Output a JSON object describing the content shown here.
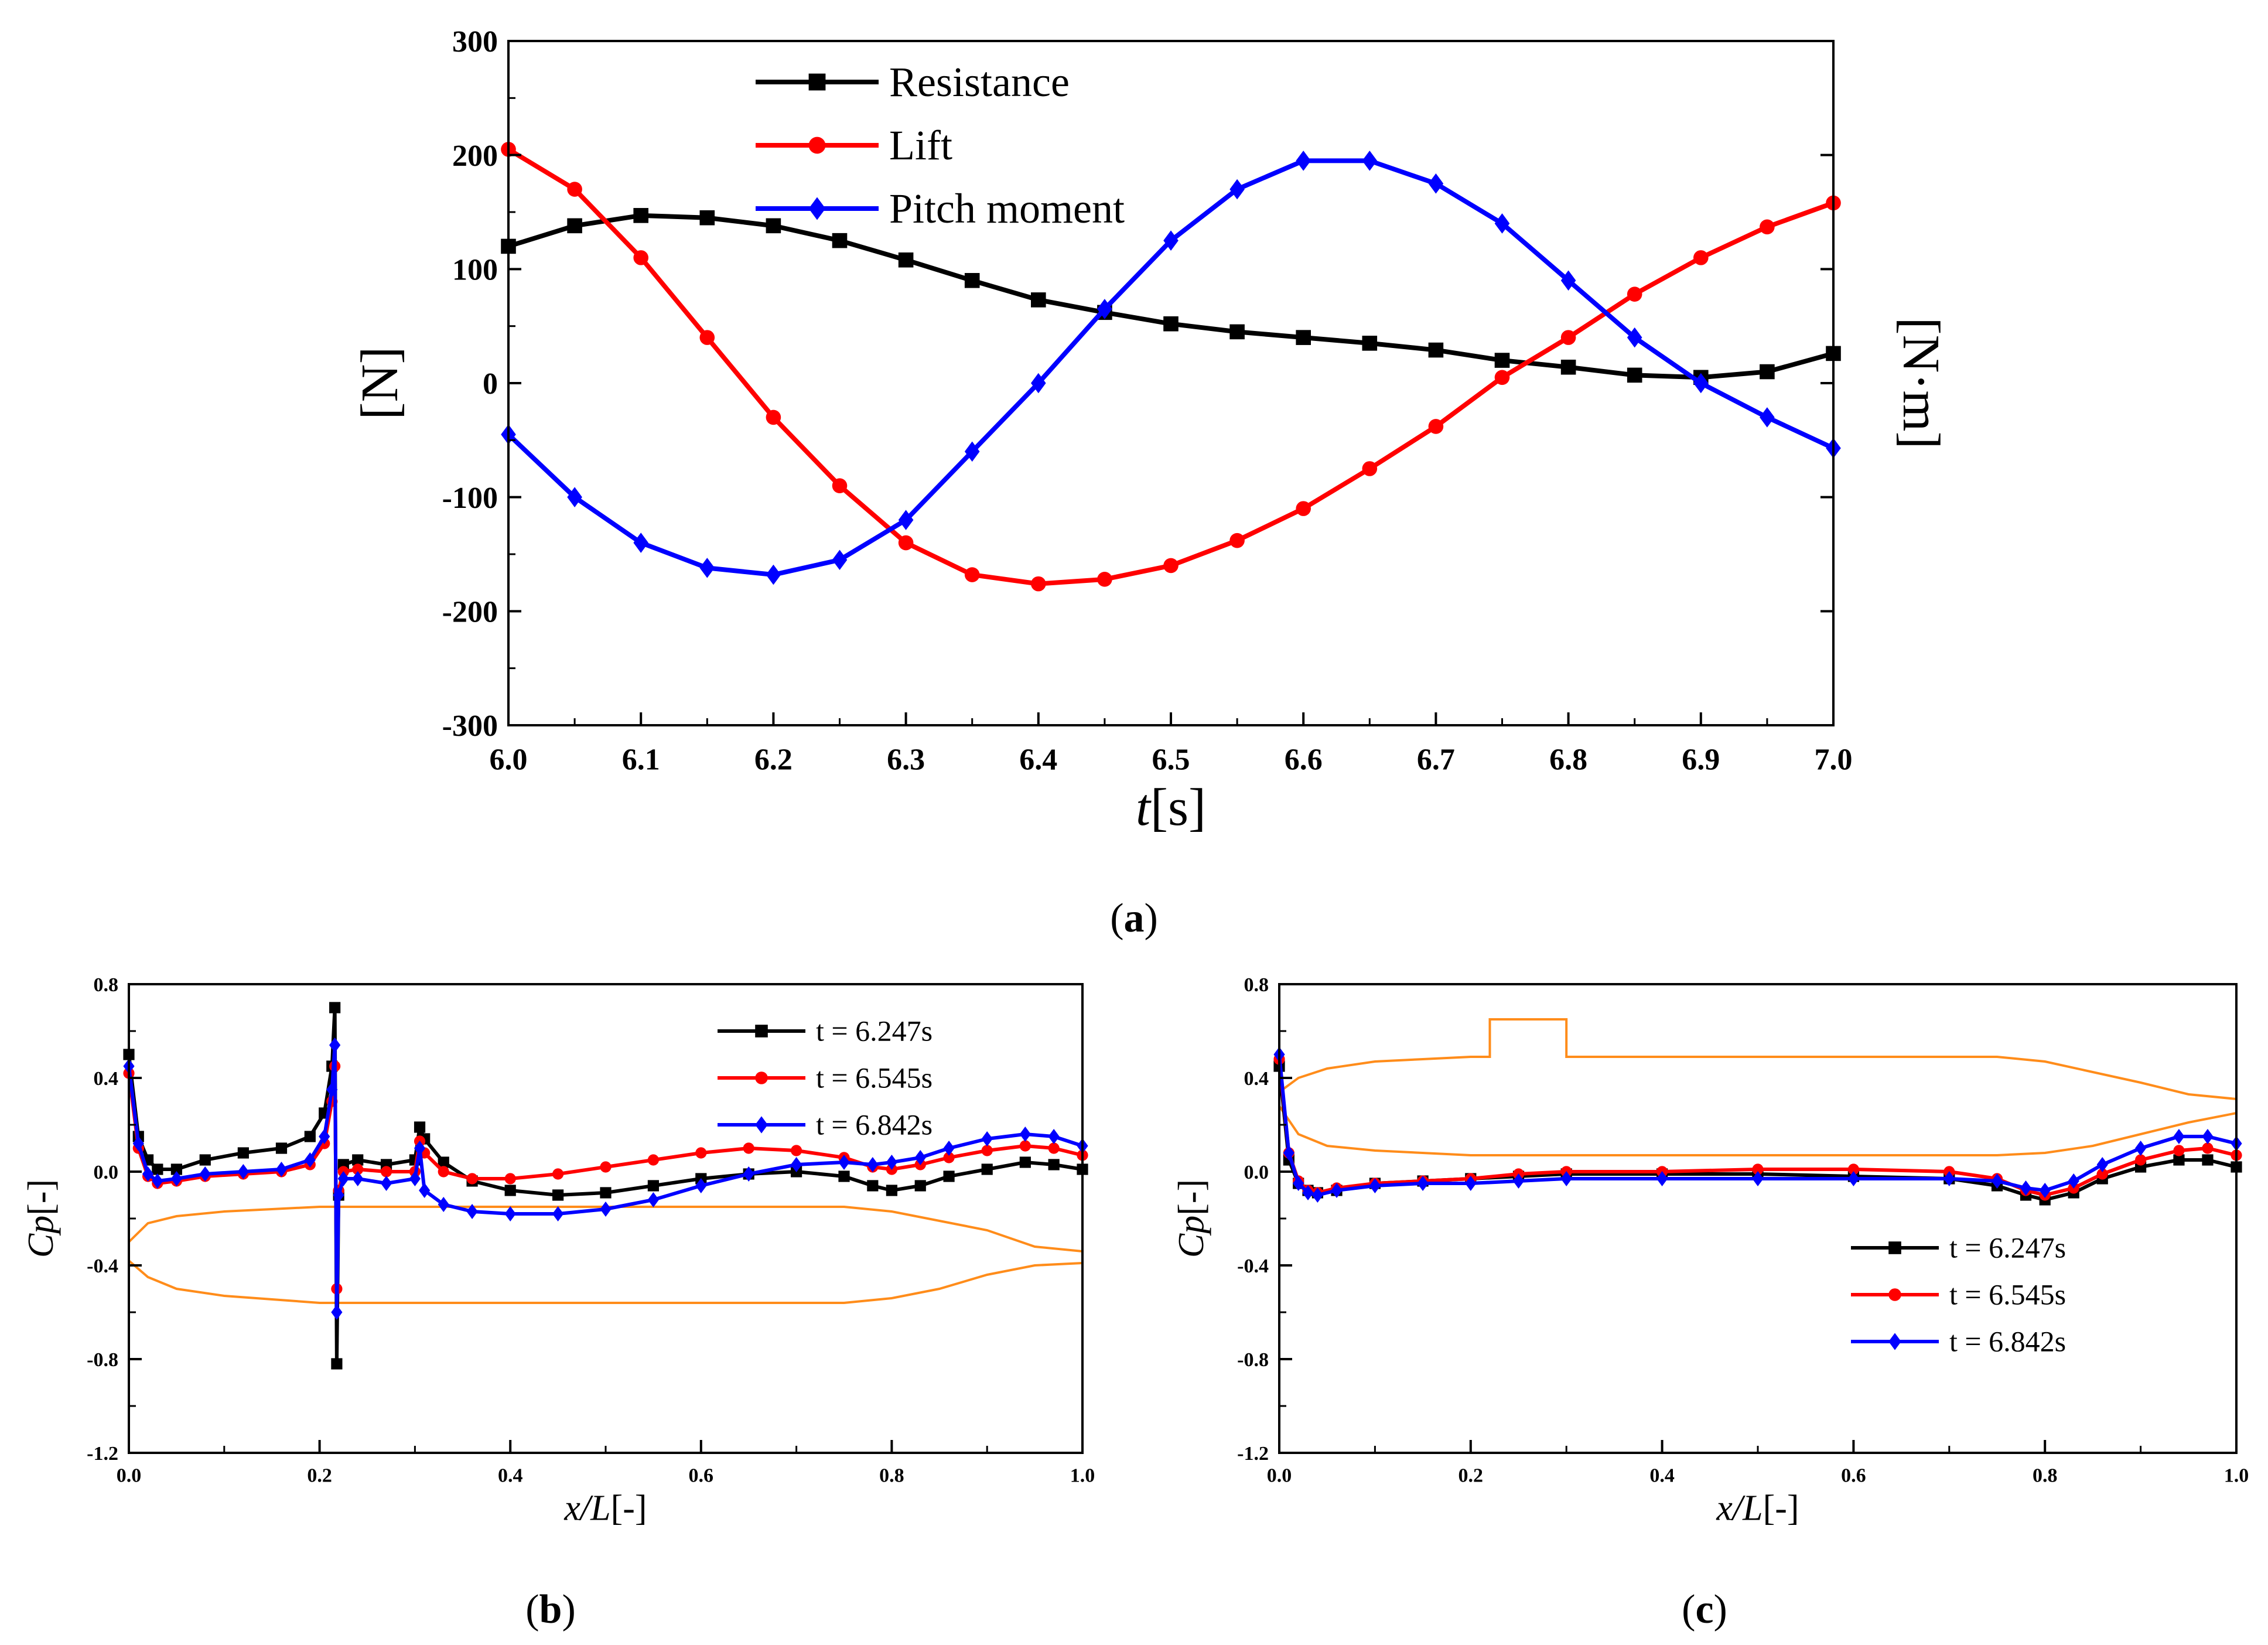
{
  "figure": {
    "panel_a_label": "a",
    "panel_b_label": "b",
    "panel_c_label": "c"
  },
  "colors": {
    "resistance": "#000000",
    "lift": "#ff0000",
    "pitch": "#0000ff",
    "hull": "#ff8c1a",
    "axis": "#000000"
  },
  "chart_data": [
    {
      "id": "a",
      "type": "line",
      "title": "",
      "xlabel_italic": "t",
      "xlabel_rest": "[s]",
      "ylabel_left": "[N]",
      "ylabel_right": "[N·m]",
      "xlim": [
        6.0,
        7.0
      ],
      "ylim": [
        -300,
        300
      ],
      "xticks": [
        6.0,
        6.1,
        6.2,
        6.3,
        6.4,
        6.5,
        6.6,
        6.7,
        6.8,
        6.9,
        7.0
      ],
      "xtick_labels": [
        "6.0",
        "6.1",
        "6.2",
        "6.3",
        "6.4",
        "6.5",
        "6.6",
        "6.7",
        "6.8",
        "6.9",
        "7.0"
      ],
      "yticks": [
        -300,
        -200,
        -100,
        0,
        100,
        200,
        300
      ],
      "ytick_labels": [
        "-300",
        "-200",
        "-100",
        "0",
        "100",
        "200",
        "300"
      ],
      "legend_position": "top-left",
      "series": [
        {
          "name": "Resistance",
          "color": "#000000",
          "marker": "square",
          "x": [
            6.0,
            6.05,
            6.1,
            6.15,
            6.2,
            6.25,
            6.3,
            6.35,
            6.4,
            6.45,
            6.5,
            6.55,
            6.6,
            6.65,
            6.7,
            6.75,
            6.8,
            6.85,
            6.9,
            6.95,
            7.0
          ],
          "y": [
            120,
            138,
            147,
            145,
            138,
            125,
            108,
            90,
            73,
            62,
            52,
            45,
            40,
            35,
            29,
            20,
            14,
            7,
            5,
            10,
            26
          ]
        },
        {
          "name": "Lift",
          "color": "#ff0000",
          "marker": "circle",
          "x": [
            6.0,
            6.05,
            6.1,
            6.15,
            6.2,
            6.25,
            6.3,
            6.35,
            6.4,
            6.45,
            6.5,
            6.55,
            6.6,
            6.65,
            6.7,
            6.75,
            6.8,
            6.85,
            6.9,
            6.95,
            7.0
          ],
          "y": [
            205,
            170,
            110,
            40,
            -30,
            -90,
            -140,
            -168,
            -176,
            -172,
            -160,
            -138,
            -110,
            -75,
            -38,
            5,
            40,
            78,
            110,
            137,
            158
          ]
        },
        {
          "name": "Pitch moment",
          "color": "#0000ff",
          "marker": "diamond",
          "x": [
            6.0,
            6.05,
            6.1,
            6.15,
            6.2,
            6.25,
            6.3,
            6.35,
            6.4,
            6.45,
            6.5,
            6.55,
            6.6,
            6.65,
            6.7,
            6.75,
            6.8,
            6.85,
            6.9,
            6.95,
            7.0
          ],
          "y": [
            -45,
            -100,
            -140,
            -162,
            -168,
            -155,
            -120,
            -60,
            0,
            65,
            125,
            170,
            195,
            195,
            175,
            140,
            90,
            40,
            0,
            -30,
            -57
          ]
        }
      ]
    },
    {
      "id": "b",
      "type": "line",
      "title": "",
      "xlabel_italic": "x/L",
      "xlabel_rest": "[-]",
      "ylabel_italic": "Cp",
      "ylabel_rest": "[-]",
      "xlim": [
        0.0,
        1.0
      ],
      "ylim": [
        -1.2,
        0.8
      ],
      "xticks": [
        0.0,
        0.2,
        0.4,
        0.6,
        0.8,
        1.0
      ],
      "xtick_labels": [
        "0.0",
        "0.2",
        "0.4",
        "0.6",
        "0.8",
        "1.0"
      ],
      "yticks": [
        -1.2,
        -0.8,
        -0.4,
        0.0,
        0.4,
        0.8
      ],
      "ytick_labels": [
        "-1.2",
        "-0.8",
        "-0.4",
        "0.0",
        "0.4",
        "0.8"
      ],
      "legend_position": "top-right",
      "series": [
        {
          "name": "t = 6.247s",
          "color": "#000000",
          "marker": "square",
          "x": [
            0.0,
            0.01,
            0.02,
            0.03,
            0.05,
            0.08,
            0.12,
            0.16,
            0.19,
            0.205,
            0.213,
            0.216,
            0.218,
            0.22,
            0.225,
            0.24,
            0.27,
            0.3,
            0.305,
            0.31,
            0.33,
            0.36,
            0.4,
            0.45,
            0.5,
            0.55,
            0.6,
            0.65,
            0.7,
            0.75,
            0.78,
            0.8,
            0.83,
            0.86,
            0.9,
            0.94,
            0.97,
            1.0
          ],
          "y": [
            0.5,
            0.15,
            0.05,
            0.01,
            0.01,
            0.05,
            0.08,
            0.1,
            0.15,
            0.25,
            0.45,
            0.7,
            -0.82,
            -0.1,
            0.03,
            0.05,
            0.03,
            0.05,
            0.19,
            0.14,
            0.04,
            -0.04,
            -0.08,
            -0.1,
            -0.09,
            -0.06,
            -0.03,
            -0.01,
            0.0,
            -0.02,
            -0.06,
            -0.08,
            -0.06,
            -0.02,
            0.01,
            0.04,
            0.03,
            0.01
          ]
        },
        {
          "name": "t = 6.545s",
          "color": "#ff0000",
          "marker": "circle",
          "x": [
            0.0,
            0.01,
            0.02,
            0.03,
            0.05,
            0.08,
            0.12,
            0.16,
            0.19,
            0.205,
            0.213,
            0.216,
            0.218,
            0.22,
            0.225,
            0.24,
            0.27,
            0.3,
            0.305,
            0.31,
            0.33,
            0.36,
            0.4,
            0.45,
            0.5,
            0.55,
            0.6,
            0.65,
            0.7,
            0.75,
            0.78,
            0.8,
            0.83,
            0.86,
            0.9,
            0.94,
            0.97,
            1.0
          ],
          "y": [
            0.42,
            0.1,
            -0.02,
            -0.05,
            -0.04,
            -0.02,
            -0.01,
            0.0,
            0.03,
            0.12,
            0.3,
            0.45,
            -0.5,
            -0.08,
            0.0,
            0.01,
            0.0,
            0.0,
            0.13,
            0.08,
            0.0,
            -0.03,
            -0.03,
            -0.01,
            0.02,
            0.05,
            0.08,
            0.1,
            0.09,
            0.06,
            0.02,
            0.01,
            0.03,
            0.06,
            0.09,
            0.11,
            0.1,
            0.07
          ]
        },
        {
          "name": "t = 6.842s",
          "color": "#0000ff",
          "marker": "diamond",
          "x": [
            0.0,
            0.01,
            0.02,
            0.03,
            0.05,
            0.08,
            0.12,
            0.16,
            0.19,
            0.205,
            0.213,
            0.216,
            0.218,
            0.22,
            0.225,
            0.24,
            0.27,
            0.3,
            0.305,
            0.31,
            0.33,
            0.36,
            0.4,
            0.45,
            0.5,
            0.55,
            0.6,
            0.65,
            0.7,
            0.75,
            0.78,
            0.8,
            0.83,
            0.86,
            0.9,
            0.94,
            0.97,
            1.0
          ],
          "y": [
            0.45,
            0.12,
            -0.01,
            -0.04,
            -0.03,
            -0.01,
            0.0,
            0.01,
            0.05,
            0.15,
            0.35,
            0.54,
            -0.6,
            -0.1,
            -0.03,
            -0.03,
            -0.05,
            -0.03,
            0.1,
            -0.08,
            -0.14,
            -0.17,
            -0.18,
            -0.18,
            -0.16,
            -0.12,
            -0.06,
            -0.01,
            0.03,
            0.04,
            0.03,
            0.04,
            0.06,
            0.1,
            0.14,
            0.16,
            0.15,
            0.11
          ]
        }
      ],
      "hull_outline": {
        "upper": {
          "x": [
            0.0,
            0.02,
            0.05,
            0.1,
            0.15,
            0.2,
            0.22,
            0.22,
            0.3,
            0.3,
            0.4,
            0.6,
            0.75,
            0.8,
            0.9,
            0.95,
            1.0,
            1.0
          ],
          "y": [
            -0.3,
            -0.22,
            -0.19,
            -0.17,
            -0.16,
            -0.15,
            -0.15,
            -0.15,
            -0.15,
            -0.15,
            -0.15,
            -0.15,
            -0.15,
            -0.17,
            -0.25,
            -0.32,
            -0.34,
            -0.34
          ]
        },
        "lower": {
          "x": [
            0.0,
            0.02,
            0.05,
            0.1,
            0.2,
            0.4,
            0.6,
            0.75,
            0.8,
            0.85,
            0.9,
            0.95,
            1.0
          ],
          "y": [
            -0.38,
            -0.45,
            -0.5,
            -0.53,
            -0.56,
            -0.56,
            -0.56,
            -0.56,
            -0.54,
            -0.5,
            -0.44,
            -0.4,
            -0.39
          ]
        }
      }
    },
    {
      "id": "c",
      "type": "line",
      "title": "",
      "xlabel_italic": "x/L",
      "xlabel_rest": "[-]",
      "ylabel_italic": "Cp",
      "ylabel_rest": "[-]",
      "xlim": [
        0.0,
        1.0
      ],
      "ylim": [
        -1.2,
        0.8
      ],
      "xticks": [
        0.0,
        0.2,
        0.4,
        0.6,
        0.8,
        1.0
      ],
      "xtick_labels": [
        "0.0",
        "0.2",
        "0.4",
        "0.6",
        "0.8",
        "1.0"
      ],
      "yticks": [
        -1.2,
        -0.8,
        -0.4,
        0.0,
        0.4,
        0.8
      ],
      "ytick_labels": [
        "-1.2",
        "-0.8",
        "-0.4",
        "0.0",
        "0.4",
        "0.8"
      ],
      "legend_position": "center-right",
      "series": [
        {
          "name": "t = 6.247s",
          "color": "#000000",
          "marker": "square",
          "x": [
            0.0,
            0.01,
            0.02,
            0.03,
            0.04,
            0.06,
            0.1,
            0.15,
            0.2,
            0.25,
            0.3,
            0.4,
            0.5,
            0.6,
            0.7,
            0.75,
            0.78,
            0.8,
            0.83,
            0.86,
            0.9,
            0.94,
            0.97,
            1.0
          ],
          "y": [
            0.45,
            0.05,
            -0.05,
            -0.08,
            -0.09,
            -0.08,
            -0.05,
            -0.04,
            -0.03,
            -0.02,
            -0.01,
            -0.01,
            -0.01,
            -0.02,
            -0.03,
            -0.06,
            -0.1,
            -0.12,
            -0.09,
            -0.03,
            0.02,
            0.05,
            0.05,
            0.02
          ]
        },
        {
          "name": "t = 6.545s",
          "color": "#ff0000",
          "marker": "circle",
          "x": [
            0.0,
            0.01,
            0.02,
            0.03,
            0.04,
            0.06,
            0.1,
            0.15,
            0.2,
            0.25,
            0.3,
            0.4,
            0.5,
            0.6,
            0.7,
            0.75,
            0.78,
            0.8,
            0.83,
            0.86,
            0.9,
            0.94,
            0.97,
            1.0
          ],
          "y": [
            0.48,
            0.08,
            -0.04,
            -0.08,
            -0.09,
            -0.07,
            -0.05,
            -0.04,
            -0.03,
            -0.01,
            0.0,
            0.0,
            0.01,
            0.01,
            0.0,
            -0.03,
            -0.08,
            -0.1,
            -0.07,
            -0.01,
            0.05,
            0.09,
            0.1,
            0.07
          ]
        },
        {
          "name": "t = 6.842s",
          "color": "#0000ff",
          "marker": "diamond",
          "x": [
            0.0,
            0.01,
            0.02,
            0.03,
            0.04,
            0.06,
            0.1,
            0.15,
            0.2,
            0.25,
            0.3,
            0.4,
            0.5,
            0.6,
            0.7,
            0.75,
            0.78,
            0.8,
            0.83,
            0.86,
            0.9,
            0.94,
            0.97,
            1.0
          ],
          "y": [
            0.5,
            0.08,
            -0.05,
            -0.09,
            -0.1,
            -0.08,
            -0.06,
            -0.05,
            -0.05,
            -0.04,
            -0.03,
            -0.03,
            -0.03,
            -0.03,
            -0.03,
            -0.04,
            -0.07,
            -0.08,
            -0.04,
            0.03,
            0.1,
            0.15,
            0.15,
            0.12
          ]
        }
      ],
      "hull_outline": {
        "upper": {
          "x": [
            0.0,
            0.02,
            0.05,
            0.1,
            0.15,
            0.2,
            0.22,
            0.22,
            0.3,
            0.3,
            0.4,
            0.6,
            0.75,
            0.8,
            0.9,
            0.95,
            1.0,
            1.0
          ],
          "y": [
            0.34,
            0.4,
            0.44,
            0.47,
            0.48,
            0.49,
            0.49,
            0.65,
            0.65,
            0.49,
            0.49,
            0.49,
            0.49,
            0.47,
            0.38,
            0.33,
            0.31,
            0.31
          ]
        },
        "lower": {
          "x": [
            0.0,
            0.02,
            0.05,
            0.1,
            0.2,
            0.4,
            0.6,
            0.75,
            0.8,
            0.85,
            0.9,
            0.95,
            1.0
          ],
          "y": [
            0.28,
            0.16,
            0.11,
            0.09,
            0.07,
            0.07,
            0.07,
            0.07,
            0.08,
            0.11,
            0.16,
            0.21,
            0.25
          ]
        }
      }
    }
  ]
}
